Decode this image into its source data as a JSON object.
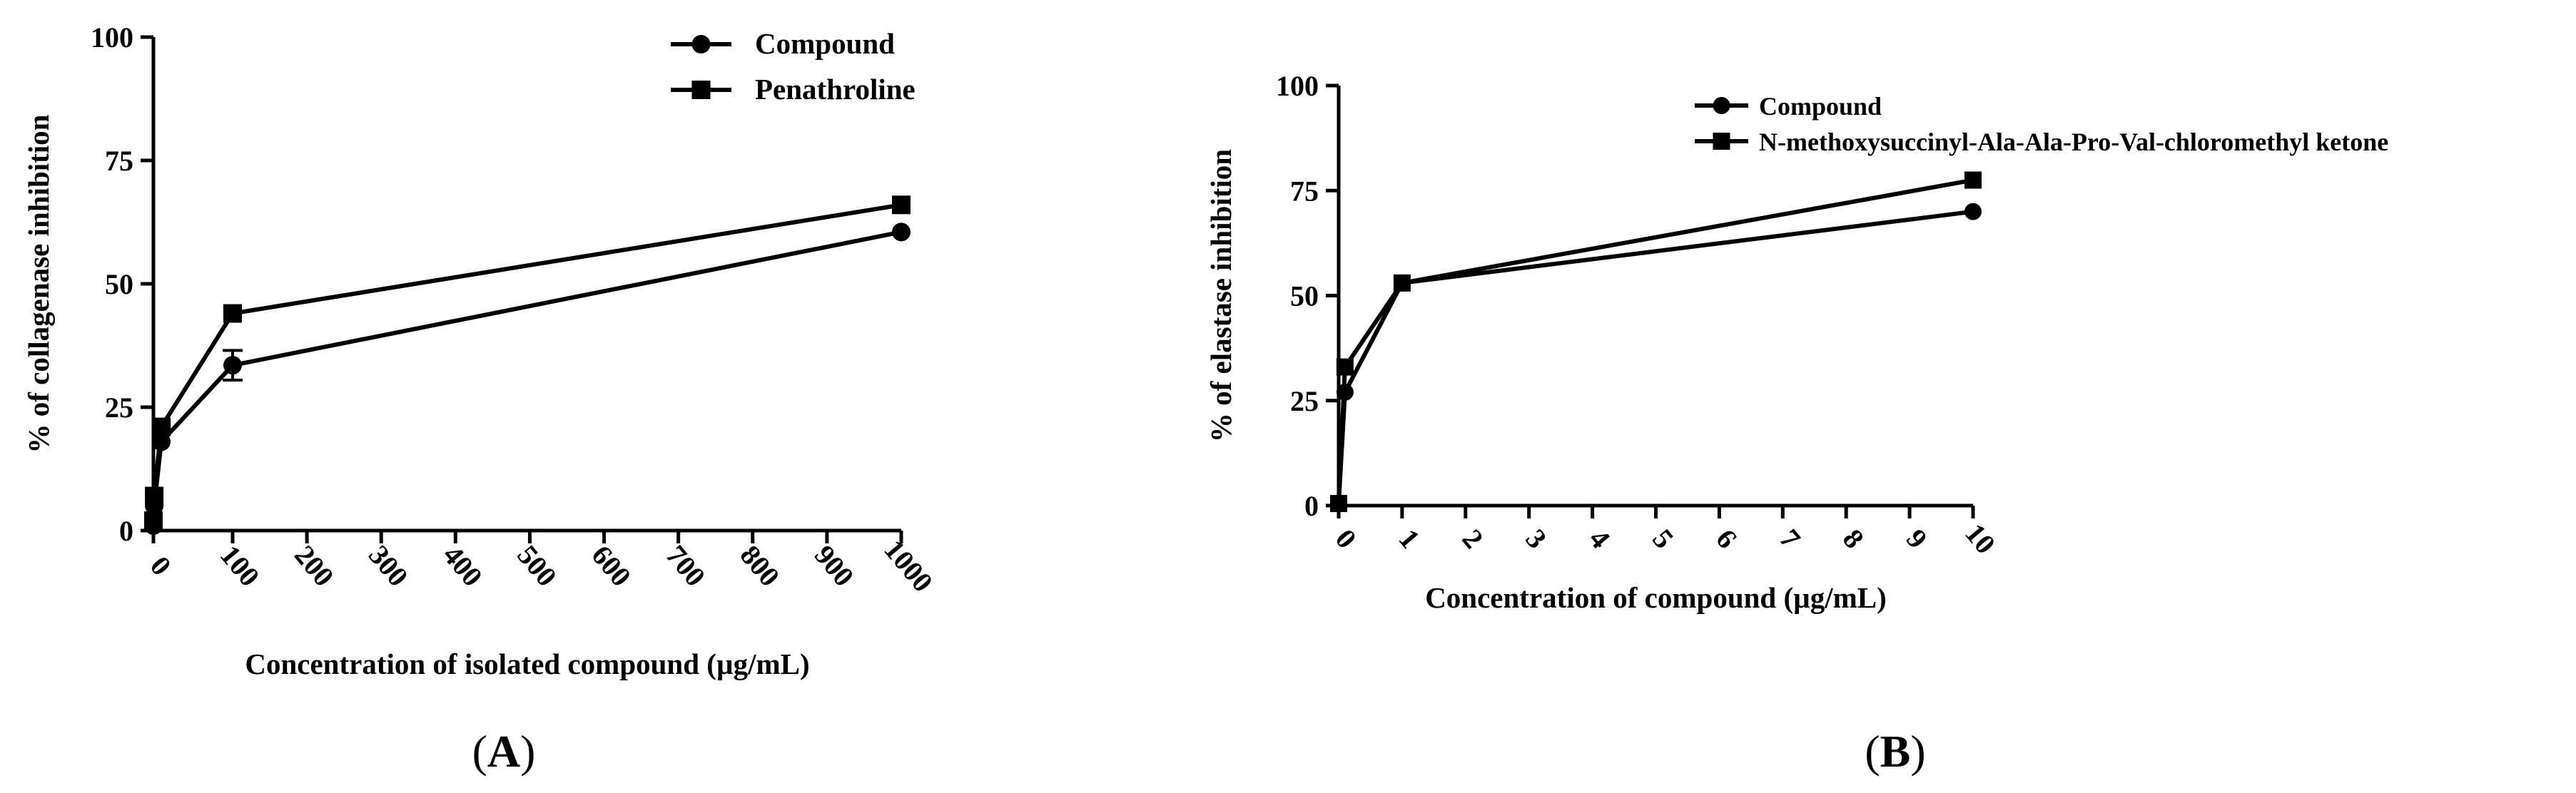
{
  "chart_data": [
    {
      "id": "A",
      "type": "line",
      "panel_label": "A",
      "xlabel": "Concentration of isolated compound  (µg/mL)",
      "ylabel": "% of collagenase inhibition",
      "xlim": [
        0,
        1000
      ],
      "ylim": [
        0,
        100
      ],
      "xticks": [
        0,
        100,
        200,
        300,
        400,
        500,
        600,
        700,
        800,
        900,
        1000
      ],
      "xtick_labels": [
        "0",
        "100",
        "200",
        "300",
        "400",
        "500",
        "600",
        "700",
        "800",
        "900",
        "1000"
      ],
      "yticks": [
        0,
        25,
        50,
        75,
        100
      ],
      "ytick_labels": [
        "0",
        "25",
        "50",
        "75",
        "100"
      ],
      "legend_position": "top-right",
      "series": [
        {
          "name": "Compound",
          "marker": "circle",
          "x": [
            0,
            1,
            10,
            100,
            1000
          ],
          "y": [
            1,
            5,
            18,
            33.5,
            60.5
          ],
          "err": [
            0,
            0,
            0,
            3,
            0
          ]
        },
        {
          "name": "Penathroline",
          "marker": "square",
          "x": [
            0,
            1,
            10,
            100,
            1000
          ],
          "y": [
            2,
            7,
            21,
            44,
            66
          ],
          "err": [
            0,
            0,
            0,
            0,
            0
          ]
        }
      ]
    },
    {
      "id": "B",
      "type": "line",
      "panel_label": "B",
      "xlabel": "Concentration of compound  (µg/mL)",
      "ylabel": "% of elastase inhibition",
      "xlim": [
        0,
        10
      ],
      "ylim": [
        0,
        100
      ],
      "xticks": [
        0,
        1,
        2,
        3,
        4,
        5,
        6,
        7,
        8,
        9,
        10
      ],
      "xtick_labels": [
        "0",
        "1",
        "2",
        "3",
        "4",
        "5",
        "6",
        "7",
        "8",
        "9",
        "10"
      ],
      "yticks": [
        0,
        25,
        50,
        75,
        100
      ],
      "ytick_labels": [
        "0",
        "25",
        "50",
        "75",
        "100"
      ],
      "legend_position": "top-right",
      "series": [
        {
          "name": "Compound",
          "marker": "circle",
          "x": [
            0,
            0.1,
            1,
            10
          ],
          "y": [
            0.5,
            27,
            53,
            70
          ],
          "err": [
            0,
            0,
            0,
            0
          ]
        },
        {
          "name": "N-methoxysuccinyl-Ala-Ala-Pro-Val-chloromethyl ketone",
          "marker": "square",
          "x": [
            0,
            0.1,
            1,
            10
          ],
          "y": [
            0.5,
            33,
            53,
            77.5
          ],
          "err": [
            0,
            0,
            0,
            0
          ]
        }
      ]
    }
  ]
}
